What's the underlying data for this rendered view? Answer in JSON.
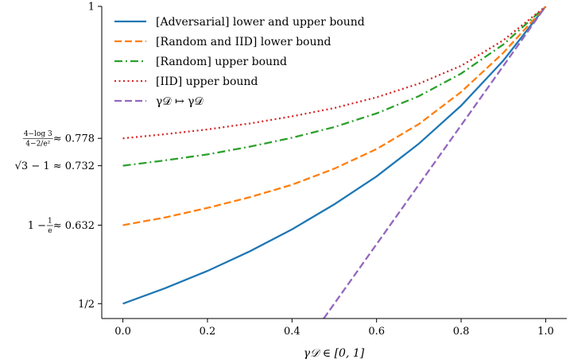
{
  "chart_data": {
    "type": "line",
    "title": "",
    "xlabel": "γ𝒟 ∈ [0, 1]",
    "ylabel": "",
    "xlim": [
      -0.05,
      1.05
    ],
    "ylim": [
      0.475,
      1.0
    ],
    "xticks": [
      0.0,
      0.2,
      0.4,
      0.6,
      0.8,
      1.0
    ],
    "xtick_labels": [
      "0.0",
      "0.2",
      "0.4",
      "0.6",
      "0.8",
      "1.0"
    ],
    "yticks": [
      {
        "value": 0.5,
        "label": "1/2",
        "kind": "plain"
      },
      {
        "value": 0.632,
        "label": "1 − 1/e ≈ 0.632",
        "kind": "frac",
        "pre": "1 − ",
        "num": "1",
        "den": "e",
        "post": " ≈ 0.632"
      },
      {
        "value": 0.732,
        "label": "√3 − 1 ≈ 0.732",
        "kind": "plain"
      },
      {
        "value": 0.778,
        "label": "(4−log 3)/(4−2/e²) ≈ 0.778",
        "kind": "frac",
        "pre": "",
        "num": "4−log 3",
        "den": "4−2/e²",
        "post": " ≈ 0.778"
      },
      {
        "value": 1.0,
        "label": "1",
        "kind": "plain"
      }
    ],
    "legend_position": "top-left",
    "grid": false,
    "series": [
      {
        "name": "[Adversarial] lower and upper bound",
        "color": "#1f77b4",
        "dash": "solid",
        "x": [
          0.0,
          0.1,
          0.2,
          0.3,
          0.4,
          0.5,
          0.6,
          0.7,
          0.8,
          0.9,
          1.0
        ],
        "y": [
          0.5,
          0.526,
          0.555,
          0.588,
          0.625,
          0.667,
          0.714,
          0.769,
          0.833,
          0.909,
          1.0
        ]
      },
      {
        "name": "[Random and IID] lower bound",
        "color": "#ff7f0e",
        "dash": "dashed",
        "x": [
          0.0,
          0.1,
          0.2,
          0.3,
          0.4,
          0.5,
          0.6,
          0.7,
          0.8,
          0.9,
          1.0
        ],
        "y": [
          0.632,
          0.645,
          0.661,
          0.679,
          0.7,
          0.727,
          0.76,
          0.802,
          0.856,
          0.922,
          1.0
        ]
      },
      {
        "name": "[Random] upper bound",
        "color": "#2ca02c",
        "dash": "dashdot",
        "x": [
          0.0,
          0.1,
          0.2,
          0.3,
          0.4,
          0.5,
          0.6,
          0.7,
          0.8,
          0.9,
          1.0
        ],
        "y": [
          0.732,
          0.741,
          0.751,
          0.764,
          0.779,
          0.797,
          0.82,
          0.849,
          0.887,
          0.936,
          1.0
        ]
      },
      {
        "name": "[IID] upper bound",
        "color": "#d62728",
        "dash": "dotted",
        "x": [
          0.0,
          0.1,
          0.2,
          0.3,
          0.4,
          0.5,
          0.6,
          0.7,
          0.8,
          0.9,
          1.0
        ],
        "y": [
          0.778,
          0.785,
          0.793,
          0.803,
          0.815,
          0.829,
          0.847,
          0.87,
          0.9,
          0.943,
          1.0
        ]
      },
      {
        "name": "γ𝒟 ↦ γ𝒟",
        "color": "#9467bd",
        "dash": "dashed",
        "x": [
          0.475,
          1.0
        ],
        "y": [
          0.475,
          1.0
        ]
      }
    ]
  }
}
